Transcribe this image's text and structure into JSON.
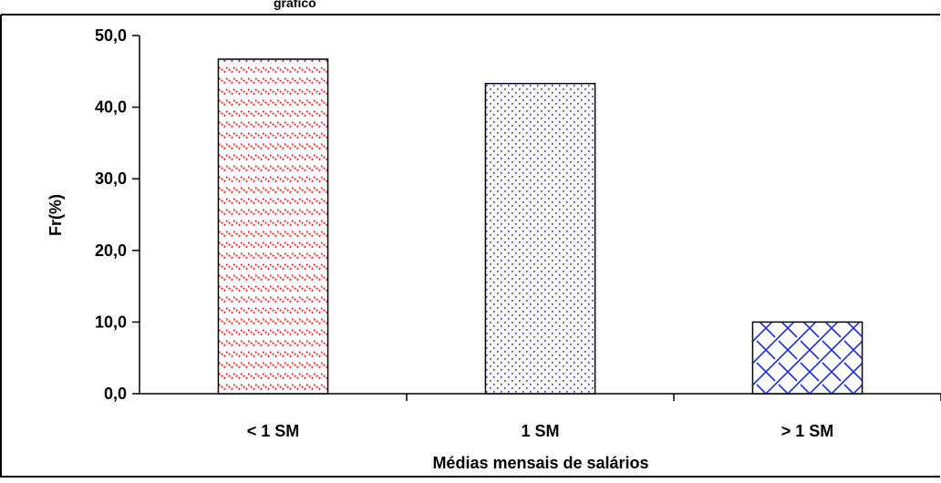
{
  "header_fragment": "gráfico",
  "chart_data": {
    "type": "bar",
    "categories": [
      "< 1 SM",
      "1 SM",
      "> 1 SM"
    ],
    "values": [
      46.7,
      43.3,
      10.0
    ],
    "xlabel": "Médias mensais de salários",
    "ylabel": "Fr(%)",
    "ylim": [
      0,
      50
    ],
    "yticks": [
      "0,0",
      "10,0",
      "20,0",
      "30,0",
      "40,0",
      "50,0"
    ],
    "grid": false,
    "legend": "none",
    "bar_patterns": [
      "red-diagonal-dashes",
      "blue-dots",
      "blue-weave"
    ],
    "colors": {
      "red": "#e53935",
      "blue": "#1a2fd6",
      "axis": "#000000"
    }
  }
}
